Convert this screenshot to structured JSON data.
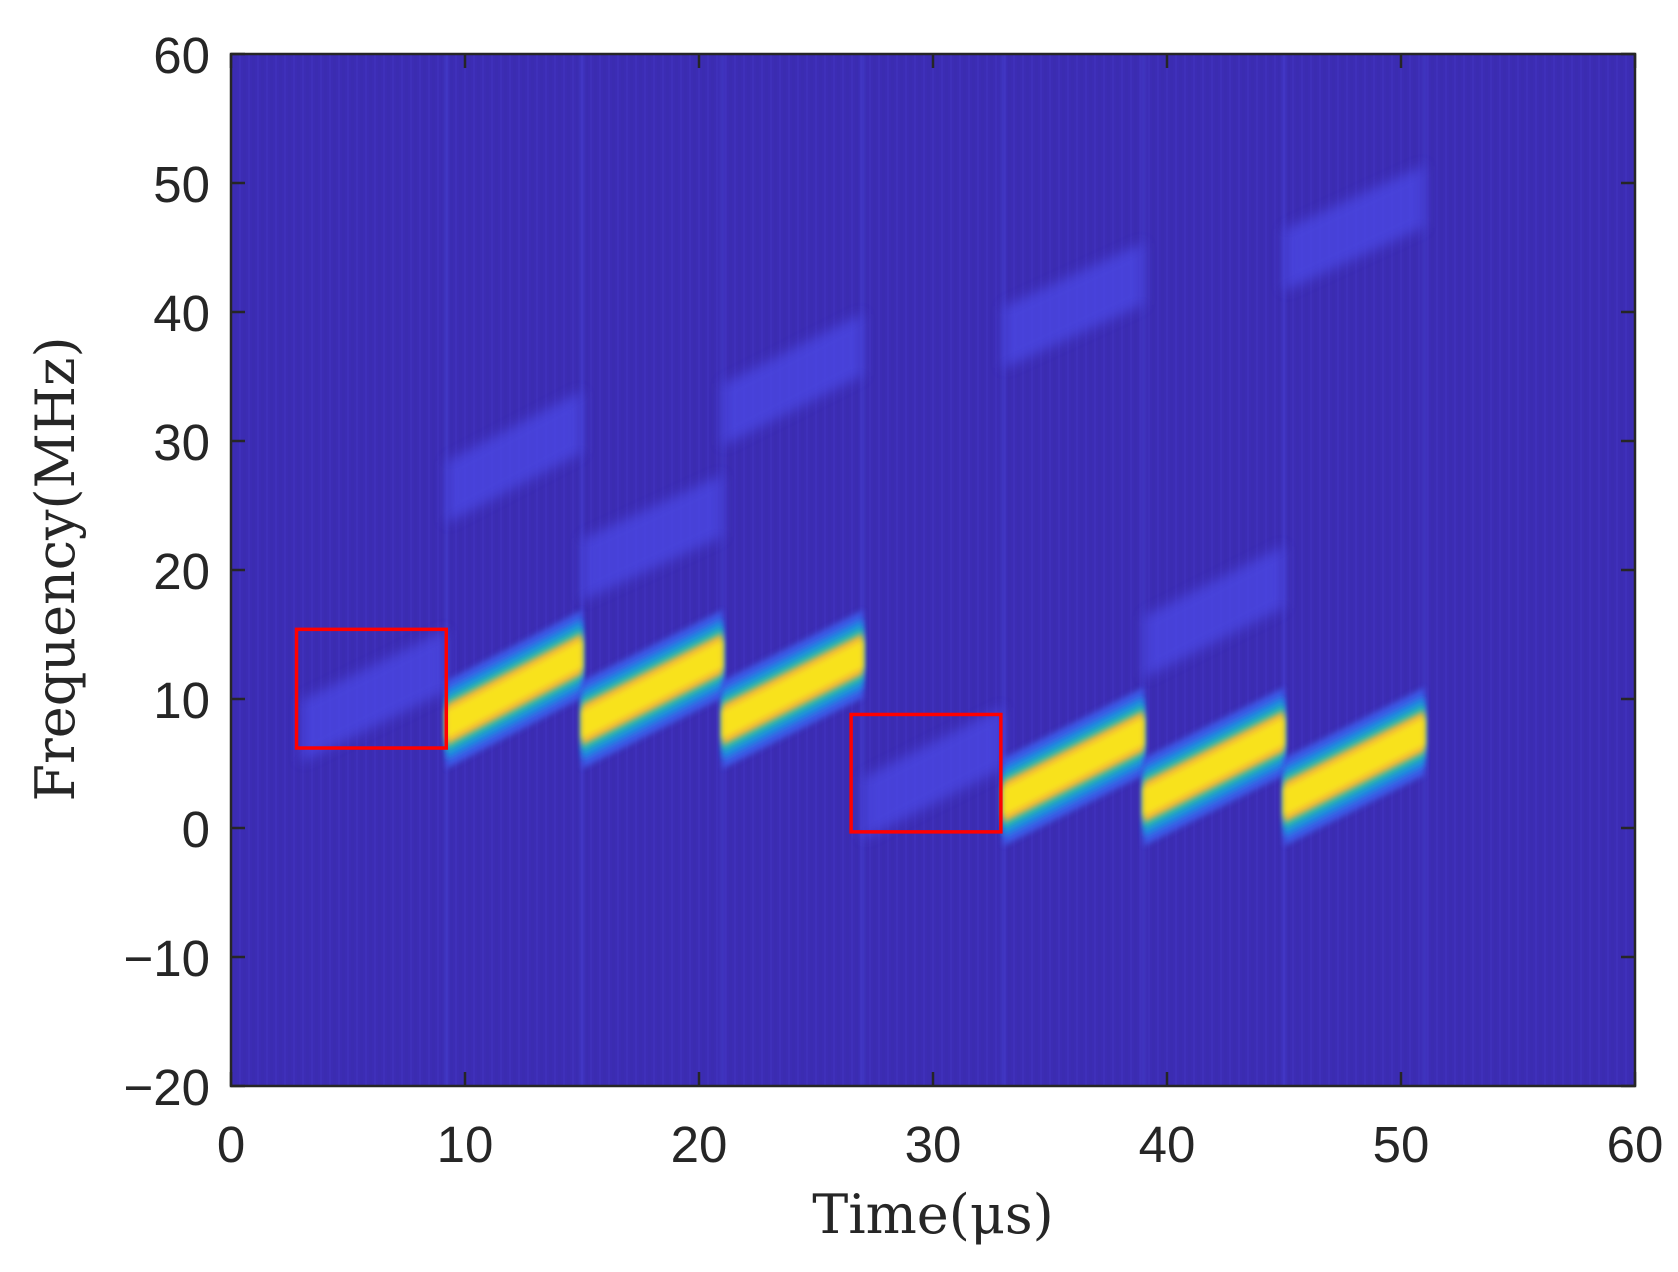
{
  "chart_data": {
    "type": "heatmap",
    "subtype": "spectrogram (time-frequency)",
    "title": "",
    "xlabel": "Time(μs)",
    "ylabel": "Frequency(MHz)",
    "xlim": [
      0,
      60
    ],
    "ylim": [
      -20,
      60
    ],
    "xticks": [
      0,
      10,
      20,
      30,
      40,
      50,
      60
    ],
    "yticks": [
      -20,
      -10,
      0,
      10,
      20,
      30,
      40,
      50,
      60
    ],
    "xtick_labels": [
      "0",
      "10",
      "20",
      "30",
      "40",
      "50",
      "60"
    ],
    "ytick_labels": [
      "−20",
      "−10",
      "0",
      "10",
      "20",
      "30",
      "40",
      "50",
      "60"
    ],
    "grid": false,
    "legend": null,
    "colormap": "parula",
    "background_color": "#3c2cb4",
    "strong_chirps": [
      {
        "t_start": 9.2,
        "t_end": 15.0,
        "f_start": 8.0,
        "f_end": 13.5,
        "intensity": "high"
      },
      {
        "t_start": 15.0,
        "t_end": 21.0,
        "f_start": 8.0,
        "f_end": 13.5,
        "intensity": "high"
      },
      {
        "t_start": 21.0,
        "t_end": 27.0,
        "f_start": 8.0,
        "f_end": 13.5,
        "intensity": "high"
      },
      {
        "t_start": 33.0,
        "t_end": 39.0,
        "f_start": 2.0,
        "f_end": 7.5,
        "intensity": "high"
      },
      {
        "t_start": 39.0,
        "t_end": 45.0,
        "f_start": 2.0,
        "f_end": 7.5,
        "intensity": "high"
      },
      {
        "t_start": 45.0,
        "t_end": 51.0,
        "f_start": 2.0,
        "f_end": 7.5,
        "intensity": "high"
      }
    ],
    "weak_chirps": [
      {
        "t_start": 3.0,
        "t_end": 9.2,
        "f_start": 7.5,
        "f_end": 13.0,
        "intensity": "low"
      },
      {
        "t_start": 9.2,
        "t_end": 15.0,
        "f_start": 26.0,
        "f_end": 31.5,
        "intensity": "low"
      },
      {
        "t_start": 15.0,
        "t_end": 21.0,
        "f_start": 20.0,
        "f_end": 25.0,
        "intensity": "low"
      },
      {
        "t_start": 21.0,
        "t_end": 27.0,
        "f_start": 32.0,
        "f_end": 37.5,
        "intensity": "low"
      },
      {
        "t_start": 27.0,
        "t_end": 33.0,
        "f_start": 1.5,
        "f_end": 7.0,
        "intensity": "low"
      },
      {
        "t_start": 33.0,
        "t_end": 39.0,
        "f_start": 38.0,
        "f_end": 43.0,
        "intensity": "low"
      },
      {
        "t_start": 39.0,
        "t_end": 45.0,
        "f_start": 14.0,
        "f_end": 19.5,
        "intensity": "low"
      },
      {
        "t_start": 45.0,
        "t_end": 51.0,
        "f_start": 44.0,
        "f_end": 49.0,
        "intensity": "low"
      }
    ],
    "segment_boundaries_us": [
      9.2,
      15.0,
      21.0,
      27.0,
      33.0,
      39.0,
      45.0,
      51.0
    ],
    "annotations": [
      {
        "type": "rectangle",
        "color": "#ff0000",
        "x": [
          2.8,
          9.2
        ],
        "y": [
          6.2,
          15.4
        ]
      },
      {
        "type": "rectangle",
        "color": "#ff0000",
        "x": [
          26.5,
          32.9
        ],
        "y": [
          -0.3,
          8.8
        ]
      }
    ]
  }
}
